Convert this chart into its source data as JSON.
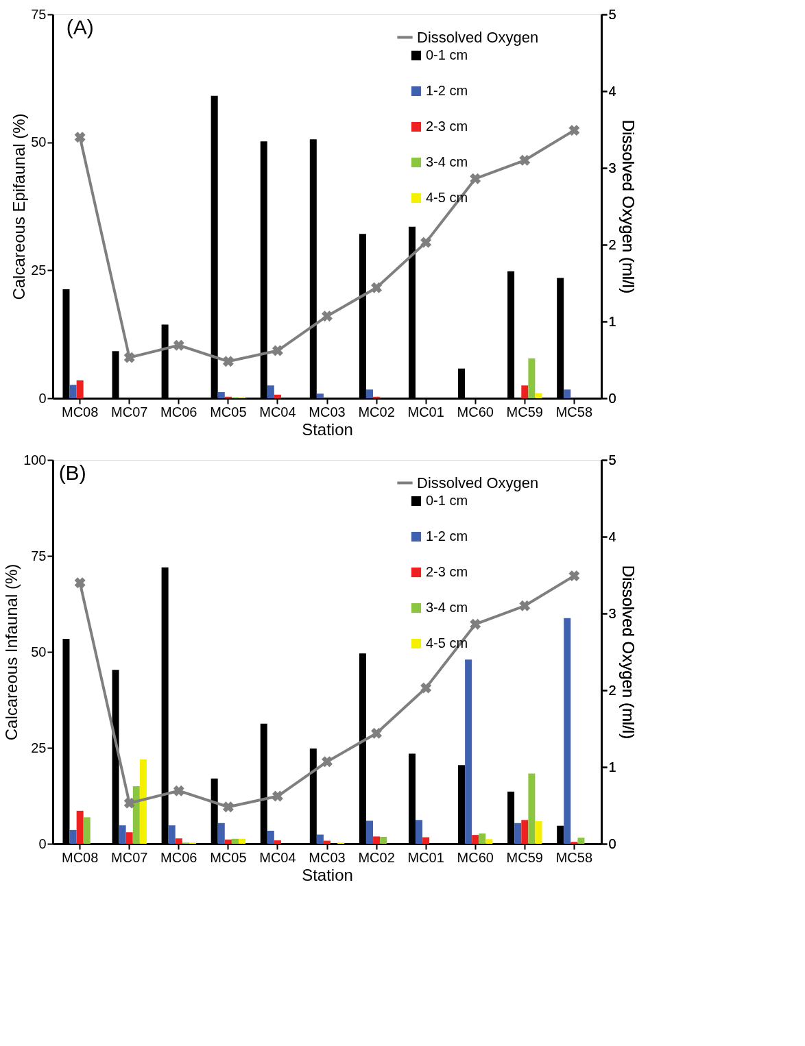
{
  "chart_data": [
    {
      "type": "bar",
      "title": "(A)",
      "xlabel": "Station",
      "ylabel": "Calcareous Epifaunal (%)",
      "y2label": "Dissolved Oxygen (ml/l)",
      "categories": [
        "MC08",
        "MC07",
        "MC06",
        "MC05",
        "MC04",
        "MC03",
        "MC02",
        "MC01",
        "MC60",
        "MC59",
        "MC58"
      ],
      "series": [
        {
          "name": "Dissolved Oxygen",
          "type": "line",
          "axis": "y2",
          "color": "#7f7f7f",
          "marker": "cross",
          "values": [
            3.4,
            0.53,
            0.69,
            0.48,
            0.62,
            1.07,
            1.44,
            2.03,
            2.86,
            3.1,
            3.49
          ]
        },
        {
          "name": "0-1 cm",
          "color": "#000000",
          "values": [
            21.3,
            9.2,
            14.4,
            59.1,
            50.2,
            50.6,
            32.1,
            33.5,
            5.8,
            24.8,
            23.5
          ]
        },
        {
          "name": "1-2 cm",
          "color": "#4060b0",
          "values": [
            2.6,
            0,
            0,
            1.2,
            2.5,
            0.9,
            1.7,
            0,
            0,
            0,
            1.7
          ]
        },
        {
          "name": "2-3 cm",
          "color": "#ee2020",
          "values": [
            3.5,
            0,
            0,
            0.3,
            0.7,
            0,
            0.3,
            0,
            0,
            2.5,
            0
          ]
        },
        {
          "name": "3-4 cm",
          "color": "#8cc540",
          "values": [
            0,
            0,
            0,
            0.2,
            0,
            0,
            0,
            0,
            0,
            7.8,
            0
          ]
        },
        {
          "name": "4-5 cm",
          "color": "#f5f000",
          "values": [
            0,
            0,
            0,
            0.1,
            0,
            0,
            0,
            0,
            0,
            1.0,
            0
          ]
        }
      ],
      "ylim": [
        0,
        75
      ],
      "yticks": [
        0,
        25,
        50,
        75
      ],
      "y2lim": [
        0,
        5
      ],
      "y2ticks": [
        0,
        1,
        2,
        3,
        4,
        5
      ],
      "legend": "top right",
      "grid": false
    },
    {
      "type": "bar",
      "title": "(B)",
      "xlabel": "Station",
      "ylabel": "Calcareous Infaunal (%)",
      "y2label": "Dissolved Oxygen (ml/l)",
      "categories": [
        "MC08",
        "MC07",
        "MC06",
        "MC05",
        "MC04",
        "MC03",
        "MC02",
        "MC01",
        "MC60",
        "MC59",
        "MC58"
      ],
      "series": [
        {
          "name": "Dissolved Oxygen",
          "type": "line",
          "axis": "y2",
          "color": "#7f7f7f",
          "marker": "cross",
          "values": [
            3.4,
            0.53,
            0.69,
            0.48,
            0.62,
            1.07,
            1.44,
            2.03,
            2.86,
            3.1,
            3.49
          ]
        },
        {
          "name": "0-1 cm",
          "color": "#000000",
          "values": [
            53.4,
            45.3,
            72.0,
            17.0,
            31.3,
            24.8,
            49.6,
            23.5,
            20.5,
            13.6,
            4.7
          ]
        },
        {
          "name": "1-2 cm",
          "color": "#4060b0",
          "values": [
            3.6,
            4.8,
            4.8,
            5.4,
            3.4,
            2.4,
            6.0,
            6.2,
            48.0,
            5.4,
            58.8
          ]
        },
        {
          "name": "2-3 cm",
          "color": "#ee2020",
          "values": [
            8.6,
            3.0,
            1.4,
            1.1,
            0.9,
            0.8,
            1.9,
            1.7,
            2.3,
            6.2,
            0.5
          ]
        },
        {
          "name": "3-4 cm",
          "color": "#8cc540",
          "values": [
            6.9,
            15.0,
            0.3,
            1.3,
            0,
            0,
            1.8,
            0,
            2.7,
            18.3,
            1.6
          ]
        },
        {
          "name": "4-5 cm",
          "color": "#f5f000",
          "values": [
            0,
            22.0,
            0.3,
            1.3,
            0,
            0.3,
            0,
            0,
            1.2,
            5.9,
            0
          ]
        }
      ],
      "ylim": [
        0,
        100
      ],
      "yticks": [
        0,
        25,
        50,
        75,
        100
      ],
      "y2lim": [
        0,
        5
      ],
      "y2ticks": [
        0,
        1,
        2,
        3,
        4,
        5
      ],
      "legend": "top right",
      "grid": false
    }
  ]
}
